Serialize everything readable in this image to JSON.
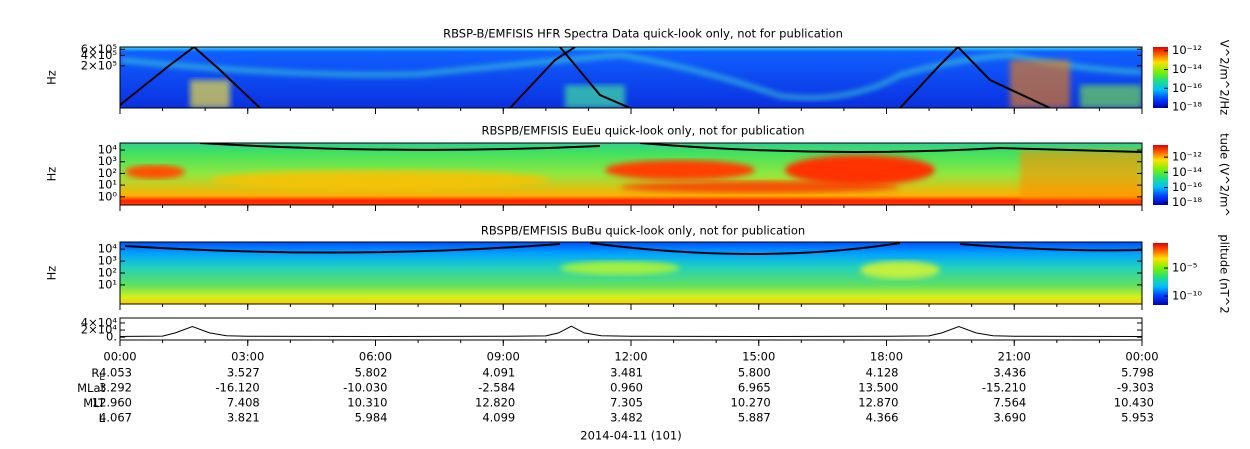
{
  "chart_data": {
    "type": "spectrogram",
    "xlim": [
      0,
      24
    ],
    "xticks": [
      {
        "value": 0,
        "label": "00:00"
      },
      {
        "value": 3,
        "label": "03:00"
      },
      {
        "value": 6,
        "label": "06:00"
      },
      {
        "value": 9,
        "label": "09:00"
      },
      {
        "value": 12,
        "label": "12:00"
      },
      {
        "value": 15,
        "label": "15:00"
      },
      {
        "value": 18,
        "label": "18:00"
      },
      {
        "value": 21,
        "label": "21:00"
      },
      {
        "value": 24,
        "label": "00:00"
      }
    ],
    "xlabel": "2014-04-11 (101)",
    "panels": [
      {
        "title": "RBSP-B/EMFISIS  HFR Spectra Data quick-look only, not for publication",
        "ylabel": "Hz",
        "log": true,
        "ylim": [
          12000,
          700000
        ],
        "yticks": [
          {
            "value": 200000,
            "label": "2×10⁵"
          },
          {
            "value": 400000,
            "label": "4×10⁵"
          },
          {
            "value": 600000,
            "label": "6×10⁵"
          }
        ],
        "colorbar": {
          "label": "V^2/m^2/Hz",
          "clim": [
            8e-19,
            2.5e-12
          ],
          "ticks": [
            {
              "value": 1e-12,
              "label": "10⁻¹²"
            },
            {
              "value": 1e-14,
              "label": "10⁻¹⁴"
            },
            {
              "value": 1e-16,
              "label": "10⁻¹⁶"
            },
            {
              "value": 1e-18,
              "label": "10⁻¹⁸"
            }
          ]
        }
      },
      {
        "title": "RBSPB/EMFISIS  EuEu quick-look only, not for publication",
        "ylabel": "Hz",
        "log": true,
        "ylim": [
          0.2,
          40000
        ],
        "yticks": [
          {
            "value": 1,
            "label": "10⁰"
          },
          {
            "value": 10,
            "label": "10¹"
          },
          {
            "value": 100,
            "label": "10²"
          },
          {
            "value": 1000,
            "label": "10³"
          },
          {
            "value": 10000,
            "label": "10⁴"
          }
        ],
        "colorbar": {
          "label": "tude (V^2/m^",
          "clim": [
            5e-19,
            4e-11
          ],
          "ticks": [
            {
              "value": 1e-12,
              "label": "10⁻¹²"
            },
            {
              "value": 1e-14,
              "label": "10⁻¹⁴"
            },
            {
              "value": 1e-16,
              "label": "10⁻¹⁶"
            },
            {
              "value": 1e-18,
              "label": "10⁻¹⁸"
            }
          ]
        }
      },
      {
        "title": "RBSPB/EMFISIS  BuBu quick-look only, not for publication",
        "ylabel": "Hz",
        "log": true,
        "ylim": [
          0.25,
          40000
        ],
        "yticks": [
          {
            "value": 10,
            "label": "10¹"
          },
          {
            "value": 100,
            "label": "10²"
          },
          {
            "value": 1000,
            "label": "10³"
          },
          {
            "value": 10000,
            "label": "10⁴"
          }
        ],
        "colorbar": {
          "label": "plitude (nT^2",
          "clim": [
            2.5e-12,
            0.3
          ],
          "ticks": [
            {
              "value": 1e-05,
              "label": "10⁻⁵"
            },
            {
              "value": 1e-10,
              "label": "10⁻¹⁰"
            }
          ]
        }
      },
      {
        "log": false,
        "ylim": [
          -8000,
          54000
        ],
        "yticks": [
          {
            "value": 0,
            "label": "0."
          },
          {
            "value": 20000,
            "label": "2×10⁴"
          },
          {
            "value": 40000,
            "label": "4×10⁴"
          }
        ],
        "x": [
          0,
          1,
          1.3,
          1.7,
          2.1,
          2.5,
          3,
          6,
          9,
          10,
          10.3,
          10.6,
          10.9,
          11.3,
          12,
          15,
          18,
          19,
          19.3,
          19.7,
          20.1,
          20.5,
          21,
          24
        ],
        "values": [
          2000,
          3000,
          12000,
          30000,
          12000,
          4000,
          2500,
          2000,
          2500,
          3500,
          12000,
          31000,
          12000,
          4000,
          2500,
          2000,
          2500,
          3500,
          12000,
          30000,
          12000,
          4000,
          2500,
          2000
        ]
      }
    ],
    "ephemeris": [
      {
        "label": "R",
        "label_sub": "E",
        "values": [
          "4.053",
          "3.527",
          "5.802",
          "4.091",
          "3.481",
          "5.800",
          "4.128",
          "3.436",
          "5.798"
        ]
      },
      {
        "label": "MLat",
        "values": [
          "3.292",
          "-16.120",
          "-10.030",
          "-2.584",
          "0.960",
          "6.965",
          "13.500",
          "-15.210",
          "-9.303"
        ]
      },
      {
        "label": "MLT",
        "values": [
          "12.960",
          "7.408",
          "10.310",
          "12.820",
          "7.305",
          "10.270",
          "12.870",
          "7.564",
          "10.430"
        ]
      },
      {
        "label": "L",
        "values": [
          "4.067",
          "3.821",
          "5.984",
          "4.099",
          "3.482",
          "5.887",
          "4.366",
          "3.690",
          "5.953"
        ]
      }
    ]
  }
}
